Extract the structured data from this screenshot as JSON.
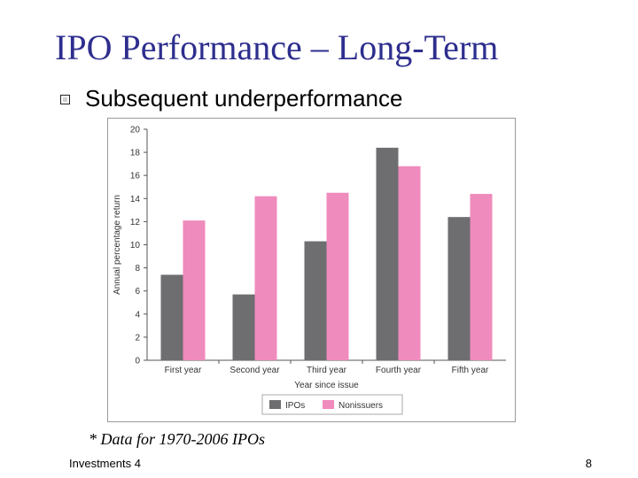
{
  "slide": {
    "title": "IPO Performance – Long-Term",
    "bullet": "Subsequent underperformance",
    "note": "* Data for 1970-2006 IPOs",
    "footer_left": "Investments 4",
    "page_number": "8"
  },
  "chart_data": {
    "type": "bar",
    "categories": [
      "First year",
      "Second year",
      "Third year",
      "Fourth year",
      "Fifth year"
    ],
    "series": [
      {
        "name": "IPOs",
        "color": "#6e6e70",
        "values": [
          7.4,
          5.7,
          10.3,
          18.4,
          12.4
        ]
      },
      {
        "name": "Nonissuers",
        "color": "#ef8bbd",
        "values": [
          12.1,
          14.2,
          14.5,
          16.8,
          14.4
        ]
      }
    ],
    "xlabel": "Year since issue",
    "ylabel": "Annual percentage return",
    "ylim": [
      0,
      20
    ],
    "yticks": [
      0,
      2,
      4,
      6,
      8,
      10,
      12,
      14,
      16,
      18,
      20
    ],
    "legend_position": "bottom-center"
  }
}
